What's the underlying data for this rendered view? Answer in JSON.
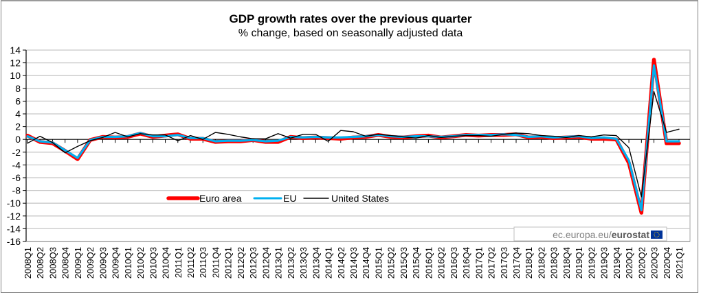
{
  "chart_data": {
    "type": "line",
    "title": "GDP growth rates over the previous quarter",
    "subtitle": "% change, based on seasonally adjusted data",
    "xlabel": "",
    "ylabel": "",
    "ylim": [
      -16,
      14
    ],
    "yticks": [
      14,
      12,
      10,
      8,
      6,
      4,
      2,
      0,
      -2,
      -4,
      -6,
      -8,
      -10,
      -12,
      -14,
      -16
    ],
    "grid": true,
    "legend_position": "bottom-left-inside",
    "categories": [
      "2008Q1",
      "2008Q2",
      "2008Q3",
      "2008Q4",
      "2009Q1",
      "2009Q2",
      "2009Q3",
      "2009Q4",
      "2010Q1",
      "2010Q2",
      "2010Q3",
      "2010Q4",
      "2011Q1",
      "2011Q2",
      "2011Q3",
      "2011Q4",
      "2012Q1",
      "2012Q2",
      "2012Q3",
      "2012Q4",
      "2013Q1",
      "2013Q2",
      "2013Q3",
      "2013Q4",
      "2014Q1",
      "2014Q2",
      "2014Q3",
      "2014Q4",
      "2015Q1",
      "2015Q2",
      "2015Q3",
      "2015Q4",
      "2016Q1",
      "2016Q2",
      "2016Q3",
      "2016Q4",
      "2017Q1",
      "2017Q2",
      "2017Q3",
      "2017Q4",
      "2018Q1",
      "2018Q2",
      "2018Q3",
      "2018Q4",
      "2019Q1",
      "2019Q2",
      "2019Q3",
      "2019Q4",
      "2020Q1",
      "2020Q2",
      "2020Q3",
      "2020Q4",
      "2021Q1"
    ],
    "series": [
      {
        "name": "Euro area",
        "color": "#ff0000",
        "values": [
          0.6,
          -0.4,
          -0.6,
          -1.8,
          -3.1,
          -0.1,
          0.4,
          0.3,
          0.4,
          0.9,
          0.4,
          0.6,
          0.8,
          0.1,
          0.1,
          -0.4,
          -0.3,
          -0.3,
          -0.1,
          -0.4,
          -0.4,
          0.4,
          0.2,
          0.3,
          0.2,
          0.1,
          0.3,
          0.4,
          0.7,
          0.4,
          0.3,
          0.5,
          0.6,
          0.3,
          0.5,
          0.7,
          0.6,
          0.7,
          0.7,
          0.8,
          0.3,
          0.4,
          0.2,
          0.3,
          0.4,
          0.1,
          0.1,
          0.0,
          -3.7,
          -11.5,
          12.5,
          -0.6,
          -0.6
        ]
      },
      {
        "name": "EU",
        "color": "#00b0f0",
        "values": [
          0.5,
          -0.3,
          -0.5,
          -1.7,
          -2.9,
          -0.1,
          0.4,
          0.4,
          0.5,
          1.0,
          0.5,
          0.5,
          0.7,
          0.2,
          0.2,
          -0.3,
          -0.2,
          -0.2,
          -0.1,
          -0.3,
          -0.2,
          0.4,
          0.3,
          0.4,
          0.3,
          0.3,
          0.4,
          0.5,
          0.7,
          0.5,
          0.4,
          0.5,
          0.5,
          0.4,
          0.5,
          0.7,
          0.7,
          0.7,
          0.8,
          0.7,
          0.4,
          0.5,
          0.3,
          0.4,
          0.5,
          0.2,
          0.3,
          0.1,
          -3.3,
          -11.1,
          11.6,
          -0.3,
          -0.3
        ]
      },
      {
        "name": "United States",
        "color": "#000000",
        "values": [
          -0.6,
          0.5,
          -0.5,
          -2.1,
          -1.1,
          -0.2,
          0.3,
          1.1,
          0.4,
          0.9,
          0.7,
          0.7,
          -0.2,
          0.6,
          0.0,
          1.1,
          0.8,
          0.4,
          0.1,
          0.1,
          0.9,
          0.2,
          0.8,
          0.8,
          -0.3,
          1.4,
          1.2,
          0.5,
          0.8,
          0.6,
          0.4,
          0.2,
          0.6,
          0.3,
          0.5,
          0.6,
          0.6,
          0.5,
          0.8,
          1.0,
          0.9,
          0.6,
          0.5,
          0.3,
          0.6,
          0.4,
          0.7,
          0.6,
          -1.3,
          -9.0,
          7.5,
          1.1,
          1.6
        ]
      }
    ]
  },
  "source": {
    "prefix": "ec.europa.eu/",
    "brand": "eurostat",
    "flag_icon": "eu-flag-icon"
  }
}
